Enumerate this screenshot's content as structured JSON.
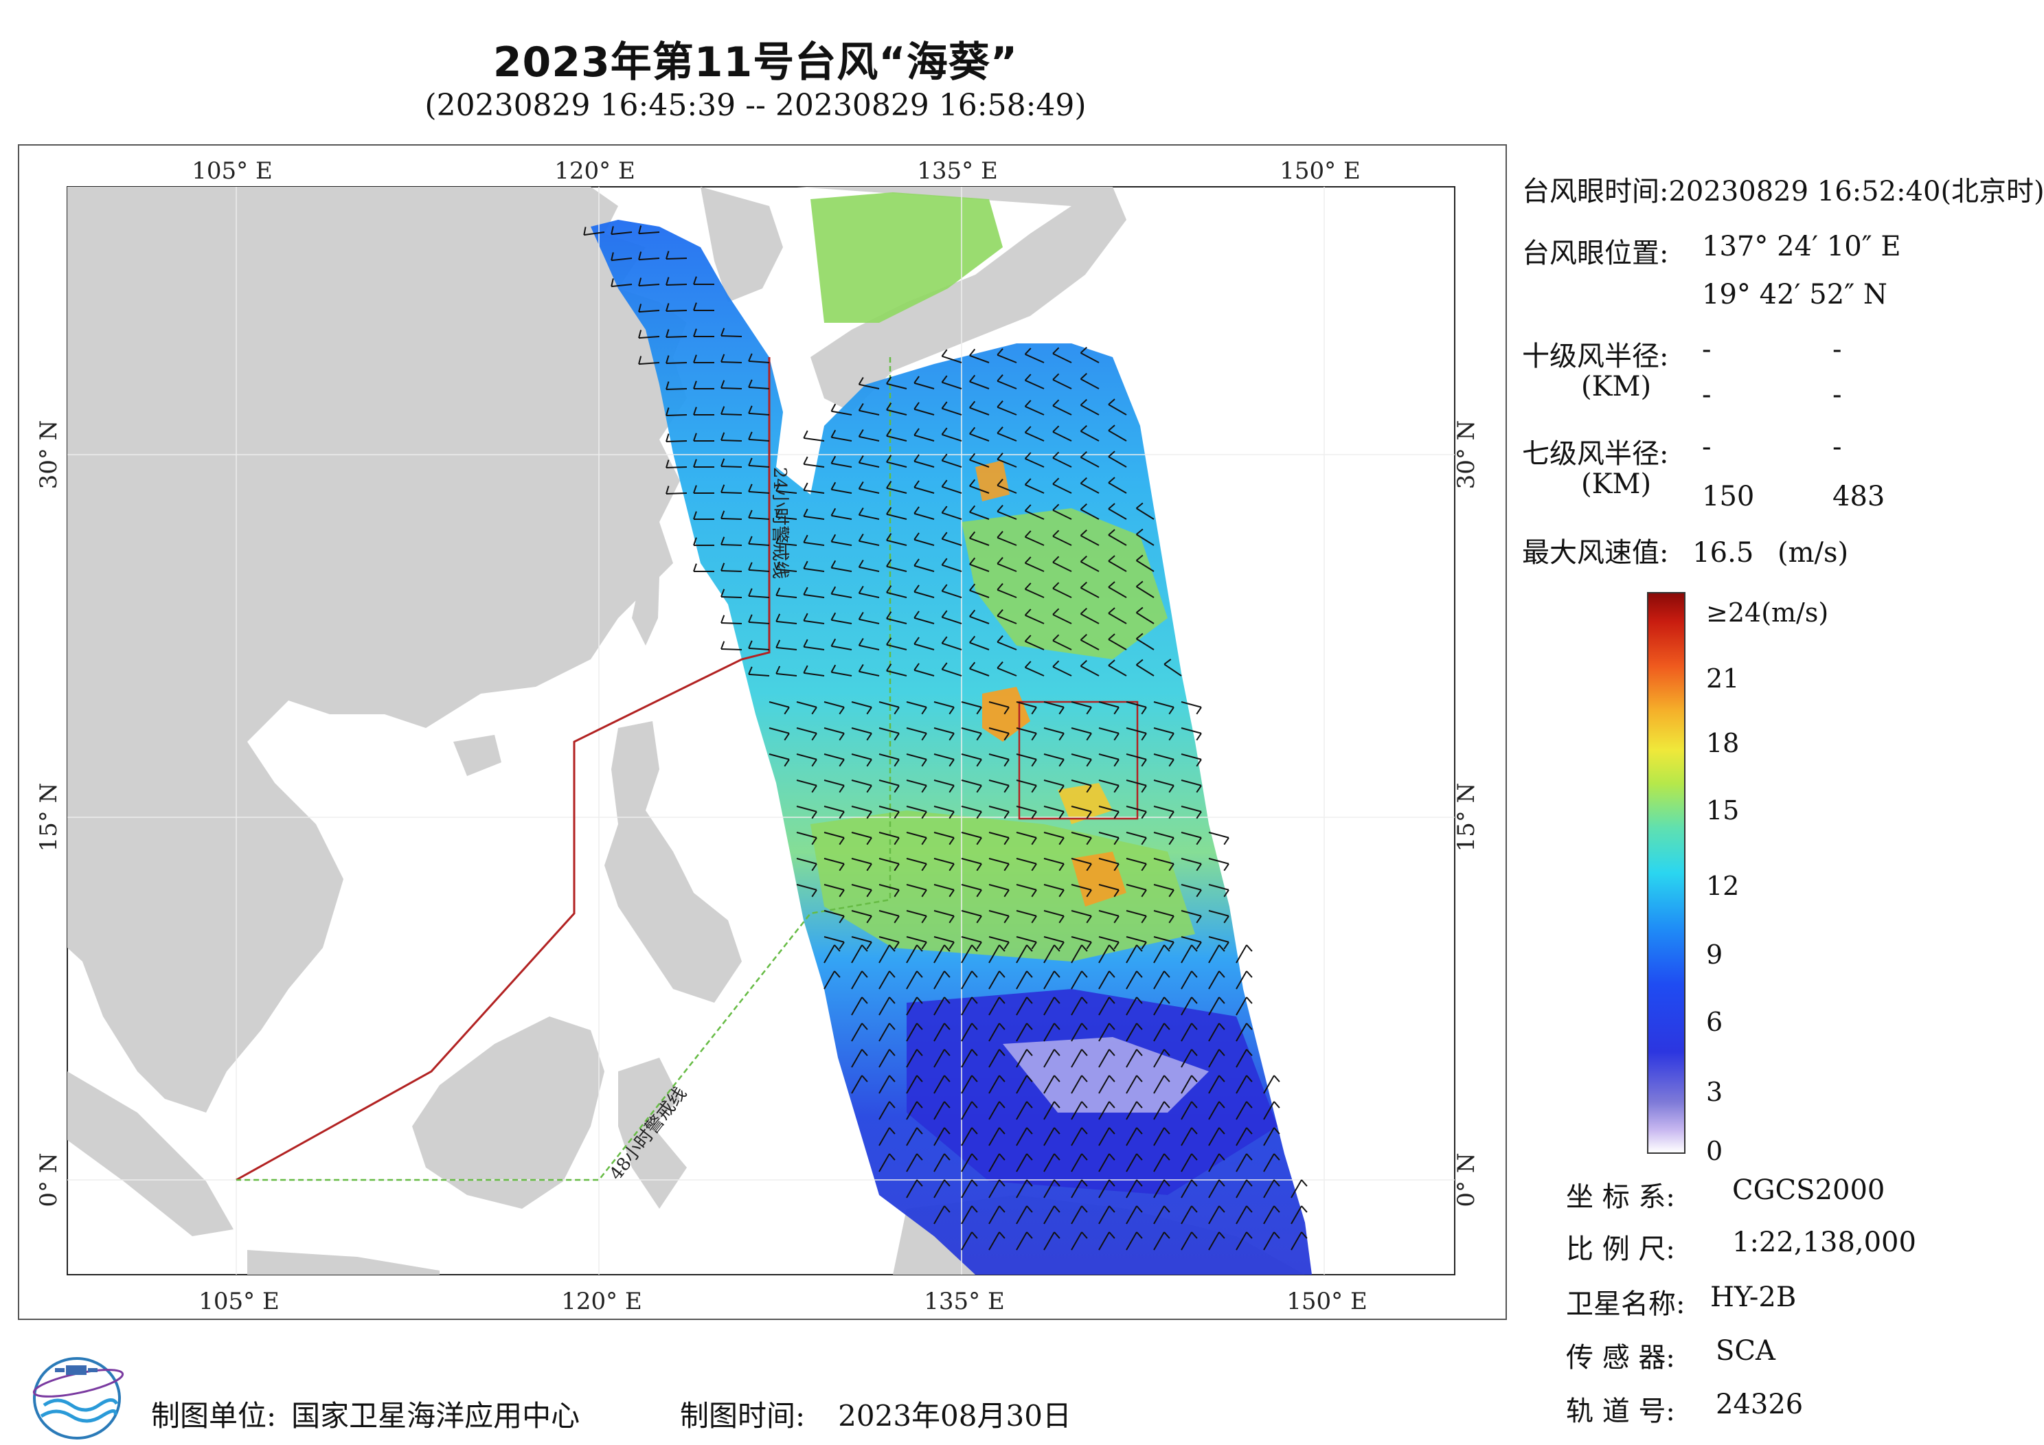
{
  "title": "2023年第11号台风“海葵”",
  "subtitle": "(20230829 16:45:39 -- 20230829 16:58:49)",
  "map": {
    "lon_labels": [
      "105° E",
      "120° E",
      "135° E",
      "150° E"
    ],
    "lat_labels": [
      "30° N",
      "15° N",
      "0° N"
    ],
    "warning_24h": "24小时警戒线",
    "warning_48h": "48小时警戒线",
    "colors": {
      "land": "#d0d0d0",
      "sea": "#ffffff",
      "line_24h": "#b22222",
      "line_48h": "#66bb44"
    }
  },
  "info": {
    "eye_time_label": "台风眼时间:",
    "eye_time_value": "20230829 16:52:40(北京时)",
    "eye_pos_label": "台风眼位置:",
    "eye_lon": "137° 24′ 10″ E",
    "eye_lat": "19° 42′ 52″ N",
    "r10_label": "十级风半径:",
    "r10_unit": "(KM)",
    "r10_values": [
      "-",
      "-",
      "-",
      "-"
    ],
    "r7_label": "七级风半径:",
    "r7_unit": "(KM)",
    "r7_values": [
      "-",
      "-",
      "150",
      "483"
    ],
    "max_wind_label": "最大风速值:",
    "max_wind_value": "16.5",
    "max_wind_unit": "(m/s)"
  },
  "colorbar": {
    "ticks": [
      "≥24(m/s)",
      "21",
      "18",
      "15",
      "12",
      "9",
      "6",
      "3",
      "0"
    ]
  },
  "meta": {
    "crs_label": "坐 标 系:",
    "crs_value": "CGCS2000",
    "scale_label": "比 例 尺:",
    "scale_value": "1:22,138,000",
    "sat_label": "卫星名称:",
    "sat_value": "HY-2B",
    "sensor_label": "传 感 器:",
    "sensor_value": "SCA",
    "orbit_label": "轨 道 号:",
    "orbit_value": "24326"
  },
  "footer": {
    "org_label": "制图单位:",
    "org_value": "国家卫星海洋应用中心",
    "time_label": "制图时间:",
    "time_value": "2023年08月30日"
  }
}
